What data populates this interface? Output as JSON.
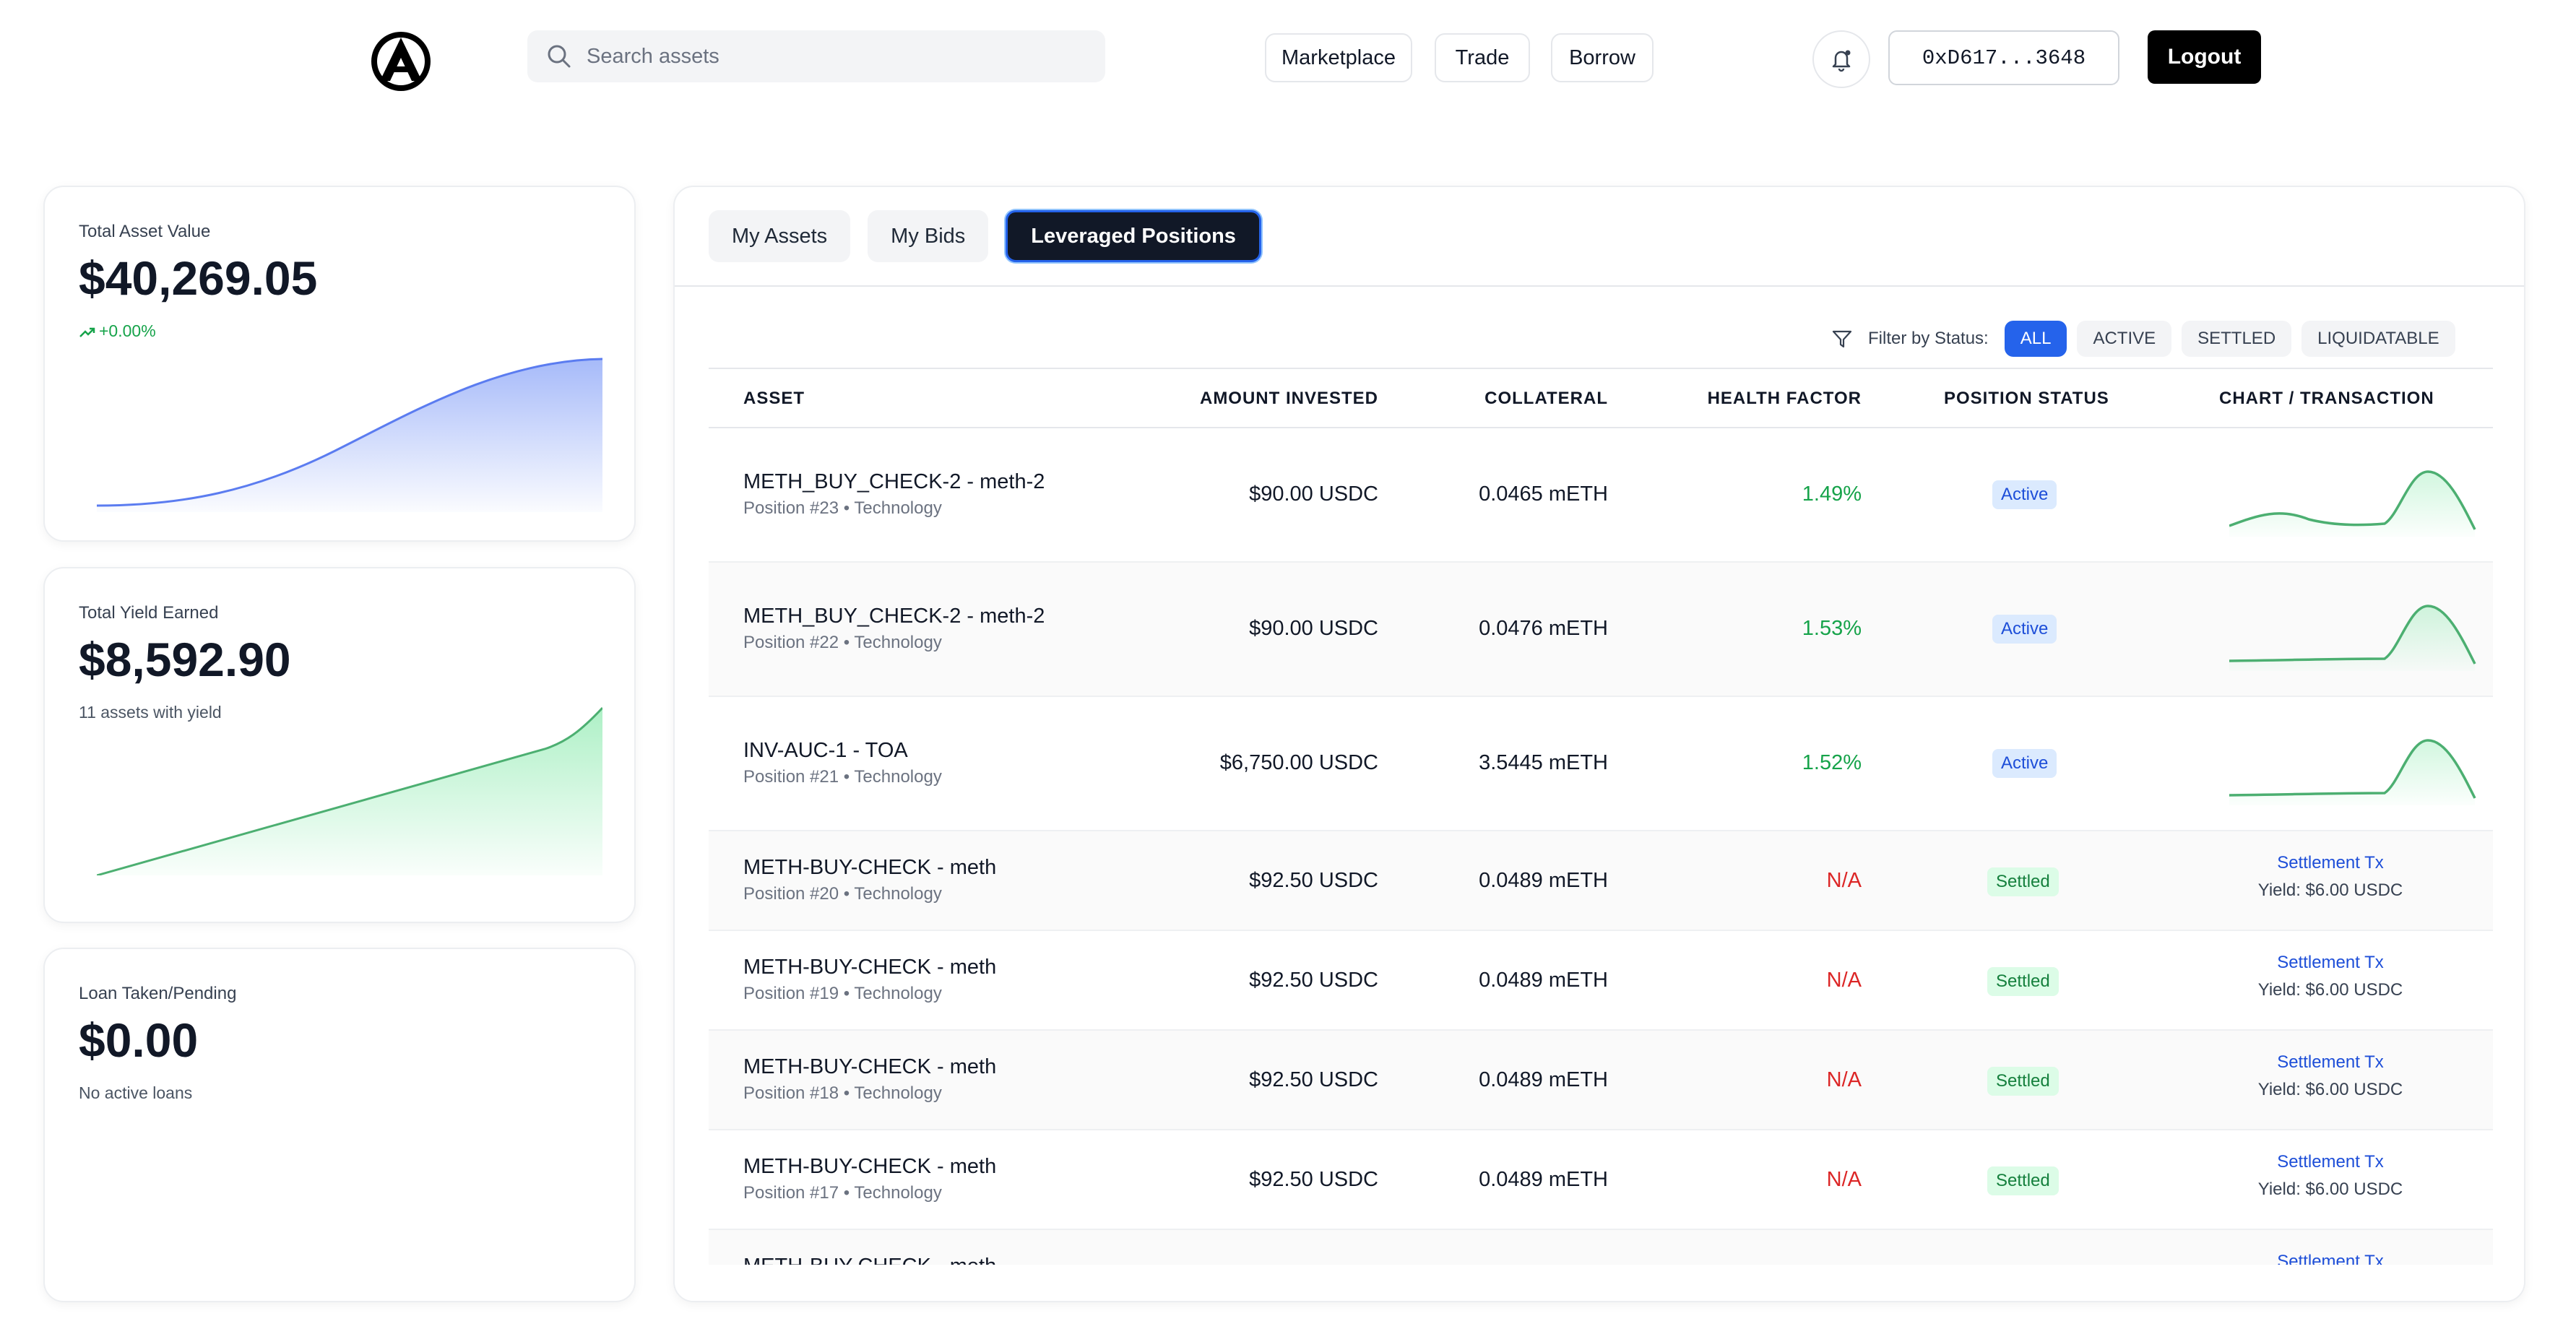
{
  "header": {
    "search_placeholder": "Search assets",
    "nav": [
      "Marketplace",
      "Trade",
      "Borrow"
    ],
    "wallet": "0xD617...3648",
    "logout": "Logout"
  },
  "cards": {
    "total_asset": {
      "label": "Total Asset Value",
      "value": "$40,269.05",
      "change": "+0.00%"
    },
    "total_yield": {
      "label": "Total Yield Earned",
      "value": "$8,592.90",
      "sub": "11 assets with yield"
    },
    "loan": {
      "label": "Loan Taken/Pending",
      "value": "$0.00",
      "sub": "No active loans"
    }
  },
  "tabs": [
    "My Assets",
    "My Bids",
    "Leveraged Positions"
  ],
  "filter": {
    "label": "Filter by Status:",
    "options": [
      "ALL",
      "ACTIVE",
      "SETTLED",
      "LIQUIDATABLE"
    ],
    "selected": "ALL"
  },
  "table": {
    "columns": [
      "ASSET",
      "AMOUNT INVESTED",
      "COLLATERAL",
      "HEALTH FACTOR",
      "POSITION STATUS",
      "CHART / TRANSACTION"
    ],
    "rows": [
      {
        "name": "METH_BUY_CHECK-2 - meth-2",
        "meta": "Position #23 • Technology",
        "amount": "$90.00 USDC",
        "collateral": "0.0465 mETH",
        "health": "1.49%",
        "status": "Active",
        "tx": "",
        "yield": ""
      },
      {
        "name": "METH_BUY_CHECK-2 - meth-2",
        "meta": "Position #22 • Technology",
        "amount": "$90.00 USDC",
        "collateral": "0.0476 mETH",
        "health": "1.53%",
        "status": "Active",
        "tx": "",
        "yield": ""
      },
      {
        "name": "INV-AUC-1 - TOA",
        "meta": "Position #21 • Technology",
        "amount": "$6,750.00 USDC",
        "collateral": "3.5445 mETH",
        "health": "1.52%",
        "status": "Active",
        "tx": "",
        "yield": ""
      },
      {
        "name": "METH-BUY-CHECK - meth",
        "meta": "Position #20 • Technology",
        "amount": "$92.50 USDC",
        "collateral": "0.0489 mETH",
        "health": "N/A",
        "status": "Settled",
        "tx": "Settlement Tx",
        "yield": "Yield: $6.00 USDC"
      },
      {
        "name": "METH-BUY-CHECK - meth",
        "meta": "Position #19 • Technology",
        "amount": "$92.50 USDC",
        "collateral": "0.0489 mETH",
        "health": "N/A",
        "status": "Settled",
        "tx": "Settlement Tx",
        "yield": "Yield: $6.00 USDC"
      },
      {
        "name": "METH-BUY-CHECK - meth",
        "meta": "Position #18 • Technology",
        "amount": "$92.50 USDC",
        "collateral": "0.0489 mETH",
        "health": "N/A",
        "status": "Settled",
        "tx": "Settlement Tx",
        "yield": "Yield: $6.00 USDC"
      },
      {
        "name": "METH-BUY-CHECK - meth",
        "meta": "Position #17 • Technology",
        "amount": "$92.50 USDC",
        "collateral": "0.0489 mETH",
        "health": "N/A",
        "status": "Settled",
        "tx": "Settlement Tx",
        "yield": "Yield: $6.00 USDC"
      },
      {
        "name": "METH-BUY-CHECK - meth",
        "meta": "",
        "amount": "",
        "collateral": "",
        "health": "",
        "status": "",
        "tx": "Settlement Tx",
        "yield": ""
      }
    ]
  },
  "colors": {
    "blue_accent": "#2563eb",
    "green": "#16a34a",
    "red": "#dc2626",
    "dark": "#111827"
  }
}
